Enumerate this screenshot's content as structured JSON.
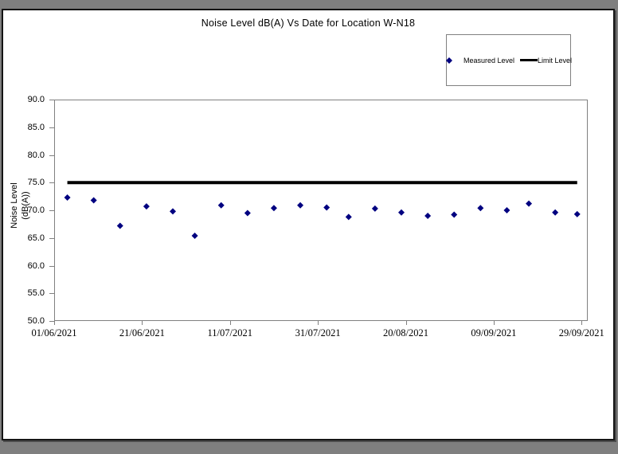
{
  "frame": {
    "outer_background": "#7f7f7f",
    "canvas_background": "#ffffff",
    "canvas_border": "#141414",
    "axis_color": "#808080"
  },
  "chart_data": {
    "type": "scatter",
    "title": "Noise Level dB(A) Vs Date for Location W-N18",
    "y_axis": {
      "label_lines": [
        "Noise Level",
        "(dB(A))"
      ],
      "min": 50,
      "max": 90,
      "tick_step": 5,
      "tick_values": [
        90,
        85,
        80,
        75,
        70,
        65,
        60,
        55,
        50
      ],
      "tick_labels": [
        "90.0",
        "85.0",
        "80.0",
        "75.0",
        "70.0",
        "65.0",
        "60.0",
        "55.0",
        "50.0"
      ]
    },
    "x_axis": {
      "tick_labels": [
        "01/06/2021",
        "21/06/2021",
        "11/07/2021",
        "31/07/2021",
        "20/08/2021",
        "09/09/2021",
        "29/09/2021"
      ],
      "tick_days": [
        0,
        20,
        40,
        60,
        80,
        100,
        120
      ],
      "max_day": 121.4,
      "start_date": "01/06/2021"
    },
    "series": [
      {
        "name": "Measured Level",
        "type": "scatter",
        "marker": "diamond",
        "color": "#000080",
        "points": [
          {
            "date": "04/06/2021",
            "day": 3,
            "value": 72.3
          },
          {
            "date": "10/06/2021",
            "day": 9,
            "value": 71.8
          },
          {
            "date": "16/06/2021",
            "day": 15,
            "value": 67.2
          },
          {
            "date": "22/06/2021",
            "day": 21,
            "value": 70.7
          },
          {
            "date": "28/06/2021",
            "day": 27,
            "value": 69.8
          },
          {
            "date": "03/07/2021",
            "day": 32,
            "value": 65.4
          },
          {
            "date": "09/07/2021",
            "day": 38,
            "value": 70.9
          },
          {
            "date": "15/07/2021",
            "day": 44,
            "value": 69.5
          },
          {
            "date": "21/07/2021",
            "day": 50,
            "value": 70.4
          },
          {
            "date": "27/07/2021",
            "day": 56,
            "value": 70.9
          },
          {
            "date": "02/08/2021",
            "day": 62,
            "value": 70.5
          },
          {
            "date": "07/08/2021",
            "day": 67,
            "value": 68.8
          },
          {
            "date": "13/08/2021",
            "day": 73,
            "value": 70.3
          },
          {
            "date": "19/08/2021",
            "day": 79,
            "value": 69.6
          },
          {
            "date": "25/08/2021",
            "day": 85,
            "value": 69.0
          },
          {
            "date": "31/08/2021",
            "day": 91,
            "value": 69.2
          },
          {
            "date": "06/09/2021",
            "day": 97,
            "value": 70.4
          },
          {
            "date": "12/09/2021",
            "day": 103,
            "value": 70.0
          },
          {
            "date": "17/09/2021",
            "day": 108,
            "value": 71.2
          },
          {
            "date": "23/09/2021",
            "day": 114,
            "value": 69.6
          },
          {
            "date": "28/09/2021",
            "day": 119,
            "value": 69.3
          }
        ]
      },
      {
        "name": "Limit Level",
        "type": "line",
        "color": "#000000",
        "value": 75.0
      }
    ],
    "legend": {
      "position": "top-right",
      "items": [
        {
          "label": "Measured Level",
          "marker": "diamond",
          "color": "#000080"
        },
        {
          "label": "Limit Level",
          "marker": "line",
          "color": "#000000"
        }
      ]
    }
  }
}
